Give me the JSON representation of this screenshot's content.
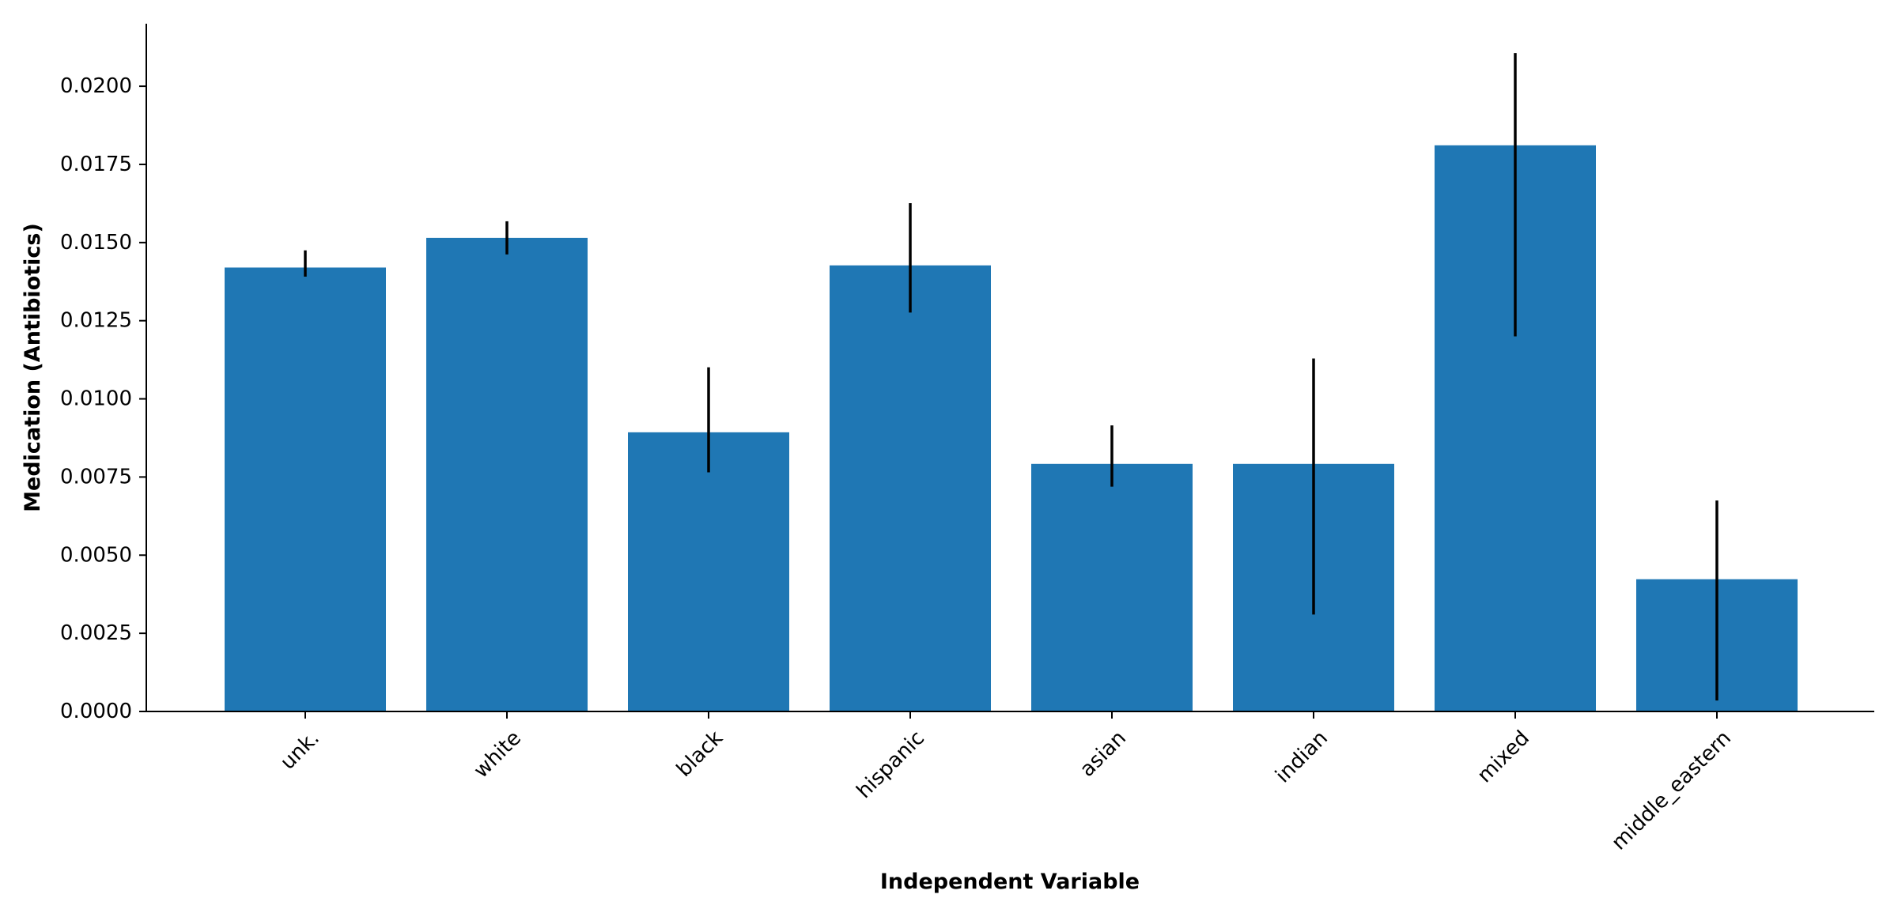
{
  "chart_data": {
    "type": "bar",
    "title": "",
    "xlabel": "Independent Variable",
    "ylabel": "Medication (Antibiotics)",
    "categories": [
      "unk.",
      "white",
      "black",
      "hispanic",
      "asian",
      "indian",
      "mixed",
      "middle_eastern"
    ],
    "values": [
      0.0142,
      0.01515,
      0.00893,
      0.01427,
      0.00792,
      0.00792,
      0.01811,
      0.00423
    ],
    "error_low": [
      0.01391,
      0.01462,
      0.00765,
      0.01276,
      0.00719,
      0.0031,
      0.012,
      0.00035
    ],
    "error_high": [
      0.01475,
      0.01568,
      0.01101,
      0.01626,
      0.00915,
      0.01129,
      0.02106,
      0.00675
    ],
    "ylim": [
      0,
      0.022
    ],
    "yticks": [
      "0.0000",
      "0.0025",
      "0.0050",
      "0.0075",
      "0.0100",
      "0.0125",
      "0.0150",
      "0.0175",
      "0.0200"
    ],
    "bar_color": "#1f77b4",
    "error_color": "#000000",
    "grid": false,
    "legend": "none"
  }
}
